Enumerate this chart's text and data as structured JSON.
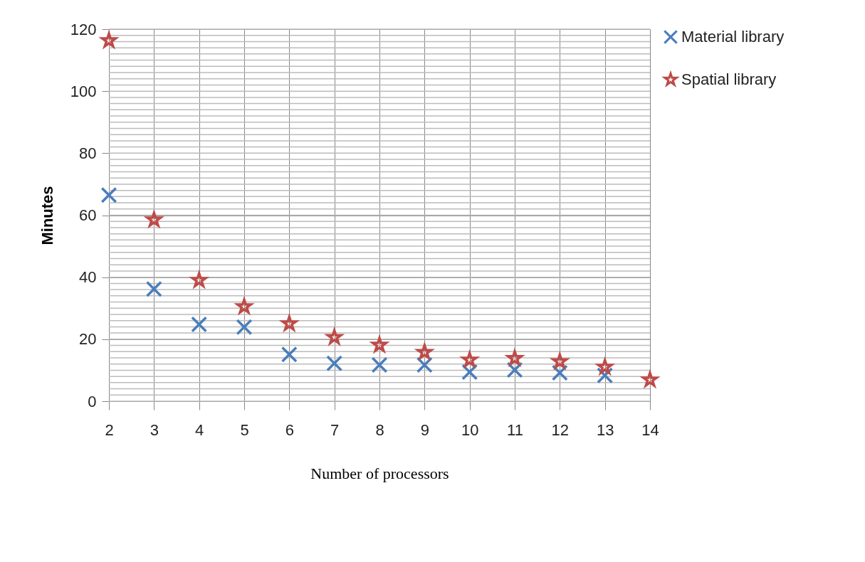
{
  "chart_data": {
    "type": "scatter",
    "xlabel": "Number of processors",
    "ylabel": "Minutes",
    "x": [
      2,
      3,
      4,
      5,
      6,
      7,
      8,
      9,
      10,
      11,
      12,
      13,
      14
    ],
    "series": [
      {
        "name": "Material library",
        "color": "#4a7ebb",
        "marker": "cross",
        "values": [
          66.5,
          36.2,
          24.8,
          23.9,
          15.1,
          12.2,
          11.7,
          11.7,
          9.4,
          10.1,
          9.2,
          8.3,
          null
        ]
      },
      {
        "name": "Spatial library",
        "color": "#be4b48",
        "marker": "star",
        "values": [
          116.3,
          58.5,
          39,
          30.5,
          25,
          20.6,
          18.1,
          15.8,
          13.3,
          13.8,
          12.8,
          11,
          6.9
        ]
      }
    ],
    "xlim": [
      2,
      14
    ],
    "xticks": [
      2,
      3,
      4,
      5,
      6,
      7,
      8,
      9,
      10,
      11,
      12,
      13,
      14
    ],
    "ylim": [
      0,
      120
    ],
    "yticks": [
      0,
      20,
      40,
      60,
      80,
      100,
      120
    ],
    "grid": true,
    "legend": "right"
  }
}
